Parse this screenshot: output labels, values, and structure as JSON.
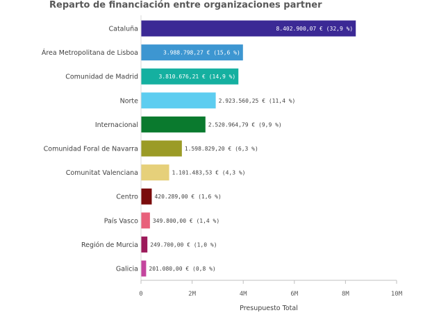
{
  "chart_data": {
    "type": "bar",
    "orientation": "horizontal",
    "title": "Reparto de financiación entre organizaciones partner",
    "xlabel": "Presupuesto Total",
    "ylabel": "",
    "xlim": [
      0,
      10000000
    ],
    "x_ticks": [
      0,
      2000000,
      4000000,
      6000000,
      8000000,
      10000000
    ],
    "x_tick_labels": [
      "0",
      "2M",
      "4M",
      "6M",
      "8M",
      "10M"
    ],
    "grid": false,
    "categories": [
      "Cataluña",
      "Área Metropolitana de Lisboa",
      "Comunidad de Madrid",
      "Norte",
      "Internacional",
      "Comunidad Foral de Navarra",
      "Comunitat Valenciana",
      "Centro",
      "País Vasco",
      "Región de Murcia",
      "Galicia"
    ],
    "values": [
      8402900.07,
      3988798.27,
      3810676.21,
      2923560.25,
      2520964.79,
      1598829.2,
      1101483.53,
      420289.0,
      349800.0,
      249700.0,
      201080.0
    ],
    "data_labels": [
      "8.402.900,07 € (32,9 %)",
      "3.988.798,27 € (15,6 %)",
      "3.810.676,21 € (14,9 %)",
      "2.923.560,25 € (11,4 %)",
      "2.520.964,79 € (9,9 %)",
      "1.598.829,20 € (6,3 %)",
      "1.101.483,53 € (4,3 %)",
      "420.289,00 € (1,6 %)",
      "349.800,00 € (1,4 %)",
      "249.700,00 € (1,0 %)",
      "201.080,00 € (0,8 %)"
    ],
    "colors": [
      "#3b2995",
      "#3d96d1",
      "#15b0a0",
      "#5dcdf0",
      "#0a7a2e",
      "#9b9b26",
      "#e6d07a",
      "#7a0b0b",
      "#e8607a",
      "#9c1a5a",
      "#c4459e"
    ]
  }
}
